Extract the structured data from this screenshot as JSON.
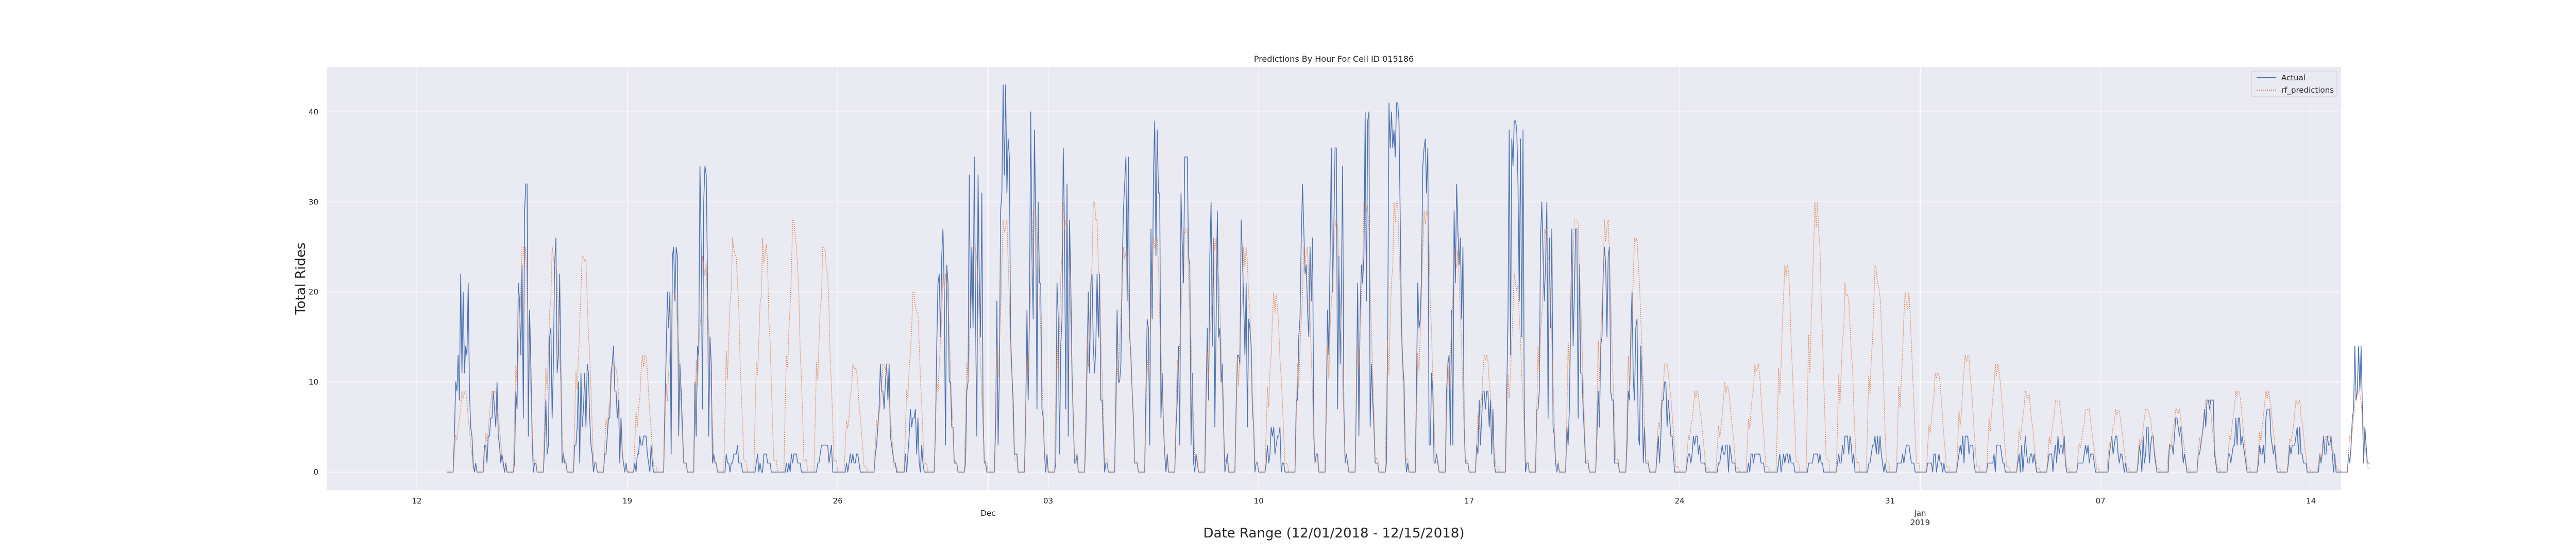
{
  "chart_data": {
    "type": "line",
    "title": "Predictions By Hour For Cell ID 015186",
    "xlabel": "Date Range (12/01/2018 - 12/15/2018)",
    "ylabel": "Total Rides",
    "x_range": [
      "2018-11-09",
      "2019-01-15"
    ],
    "ylim": [
      -2,
      45
    ],
    "yticks": [
      0,
      10,
      20,
      30,
      40
    ],
    "x_ticks": [
      {
        "date": "2018-11-12",
        "label": "12"
      },
      {
        "date": "2018-11-19",
        "label": "19"
      },
      {
        "date": "2018-11-26",
        "label": "26"
      },
      {
        "date": "2018-12-03",
        "label": "03"
      },
      {
        "date": "2018-12-10",
        "label": "10"
      },
      {
        "date": "2018-12-17",
        "label": "17"
      },
      {
        "date": "2018-12-24",
        "label": "24"
      },
      {
        "date": "2018-12-31",
        "label": "31"
      },
      {
        "date": "2019-01-07",
        "label": "07"
      },
      {
        "date": "2019-01-14",
        "label": "14"
      }
    ],
    "x_major_labels": [
      {
        "date": "2018-12-01",
        "label": "Dec"
      },
      {
        "date": "2019-01-01",
        "label": "Jan\n2019"
      }
    ],
    "grid": true,
    "legend": "top-right",
    "series": [
      {
        "name": "Actual",
        "color": "#4c72b0",
        "style": "solid",
        "start": "2018-11-13",
        "daily_peaks": [
          22,
          10,
          32,
          26,
          12,
          14,
          4,
          25,
          34,
          3,
          2,
          2,
          3,
          2,
          12,
          7,
          27,
          35,
          43,
          40,
          36,
          22,
          35,
          39,
          35,
          30,
          28,
          5,
          32,
          36,
          40,
          41,
          37,
          32,
          9,
          39,
          30,
          27,
          25,
          20,
          10,
          4,
          3,
          2,
          2,
          2,
          4,
          4,
          3,
          2,
          4,
          3,
          4,
          4,
          3,
          4,
          5,
          6,
          8,
          6,
          7,
          5,
          4,
          14
        ]
      },
      {
        "name": "rf_predictions",
        "color": "#dd8452",
        "style": "dotted",
        "start": "2018-11-13",
        "daily_peaks": [
          9,
          9,
          25,
          25,
          24,
          12,
          13,
          20,
          24,
          26,
          26,
          28,
          25,
          12,
          12,
          20,
          22,
          25,
          28,
          29,
          30,
          30,
          25,
          26,
          27,
          26,
          25,
          20,
          25,
          28,
          30,
          30,
          29,
          25,
          13,
          22,
          27,
          28,
          28,
          26,
          12,
          9,
          10,
          12,
          23,
          30,
          21,
          23,
          20,
          11,
          13,
          12,
          9,
          8,
          7,
          7,
          7,
          7,
          8,
          9,
          9,
          8,
          4,
          9
        ]
      }
    ]
  }
}
